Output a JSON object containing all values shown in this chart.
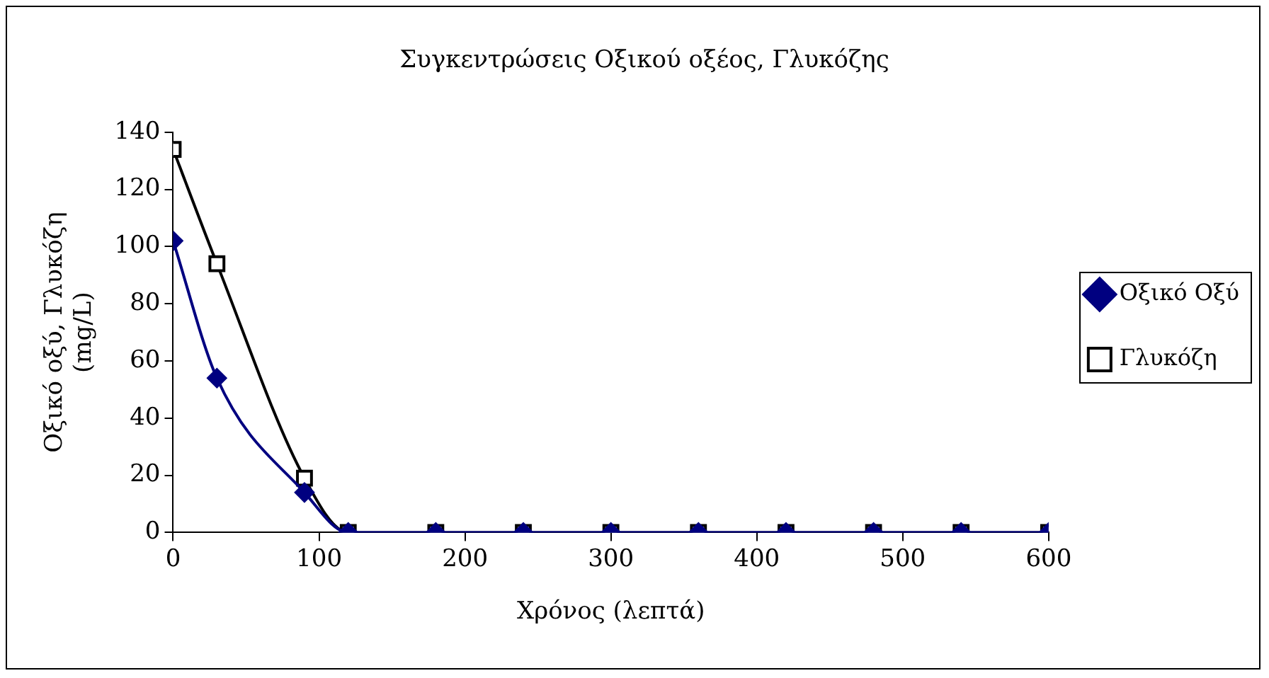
{
  "chart_data": {
    "type": "line",
    "title": "Συγκεντρώσεις Οξικού οξέος, Γλυκόζης",
    "xlabel": "Χρόνος (λεπτά)",
    "ylabel": "Οξικό οξύ, Γλυκόζη (mg/L)",
    "x": [
      0,
      30,
      90,
      120,
      180,
      240,
      300,
      360,
      420,
      480,
      540,
      600
    ],
    "series": [
      {
        "name": "Οξικό Οξύ",
        "color": "#000080",
        "marker": "diamond",
        "values": [
          102,
          54,
          14,
          0,
          0,
          0,
          0,
          0,
          0,
          0,
          0,
          0
        ]
      },
      {
        "name": "Γλυκόζη",
        "color": "#000000",
        "marker": "square",
        "values": [
          134,
          94,
          19,
          0,
          0,
          0,
          0,
          0,
          0,
          0,
          0,
          0
        ]
      }
    ],
    "xlim": [
      0,
      600
    ],
    "xticks": [
      0,
      100,
      200,
      300,
      400,
      500,
      600
    ],
    "ylim": [
      0,
      140
    ],
    "yticks": [
      0,
      20,
      40,
      60,
      80,
      100,
      120,
      140
    ],
    "grid": false,
    "legend": "right"
  }
}
